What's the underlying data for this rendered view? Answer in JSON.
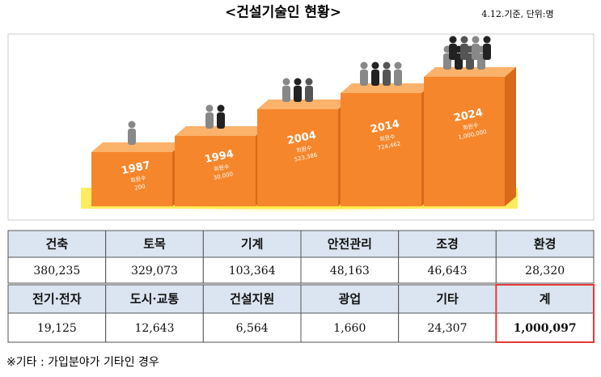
{
  "header": {
    "title": "<건설기술인 현황>",
    "note": "4.12.기준, 단위:명"
  },
  "infographic": {
    "steps": [
      {
        "year": "1987",
        "label": "회원수",
        "count": "200"
      },
      {
        "year": "1994",
        "label": "회원수",
        "count": "30,000"
      },
      {
        "year": "2004",
        "label": "회원수",
        "count": "523,386"
      },
      {
        "year": "2014",
        "label": "회원수",
        "count": "724,462"
      },
      {
        "year": "2024",
        "label": "회원수",
        "count": "1,000,000"
      }
    ]
  },
  "table": {
    "rows": [
      [
        "건축",
        "토목",
        "기계",
        "안전관리",
        "조경",
        "환경"
      ],
      [
        "380,235",
        "329,073",
        "103,364",
        "48,163",
        "46,643",
        "28,320"
      ],
      [
        "전기·전자",
        "도시·교통",
        "건설지원",
        "광업",
        "기타",
        "계"
      ],
      [
        "19,125",
        "12,643",
        "6,564",
        "1,660",
        "24,307",
        "1,000,097"
      ]
    ]
  },
  "footnote": "※기타 : 가입분야가 기타인 경우"
}
